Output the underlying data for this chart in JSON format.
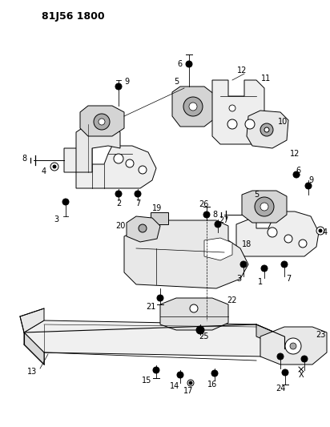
{
  "title": "81J56 1800",
  "bg_color": "#ffffff",
  "line_color": "#000000",
  "fig_width": 4.12,
  "fig_height": 5.33,
  "dpi": 100
}
